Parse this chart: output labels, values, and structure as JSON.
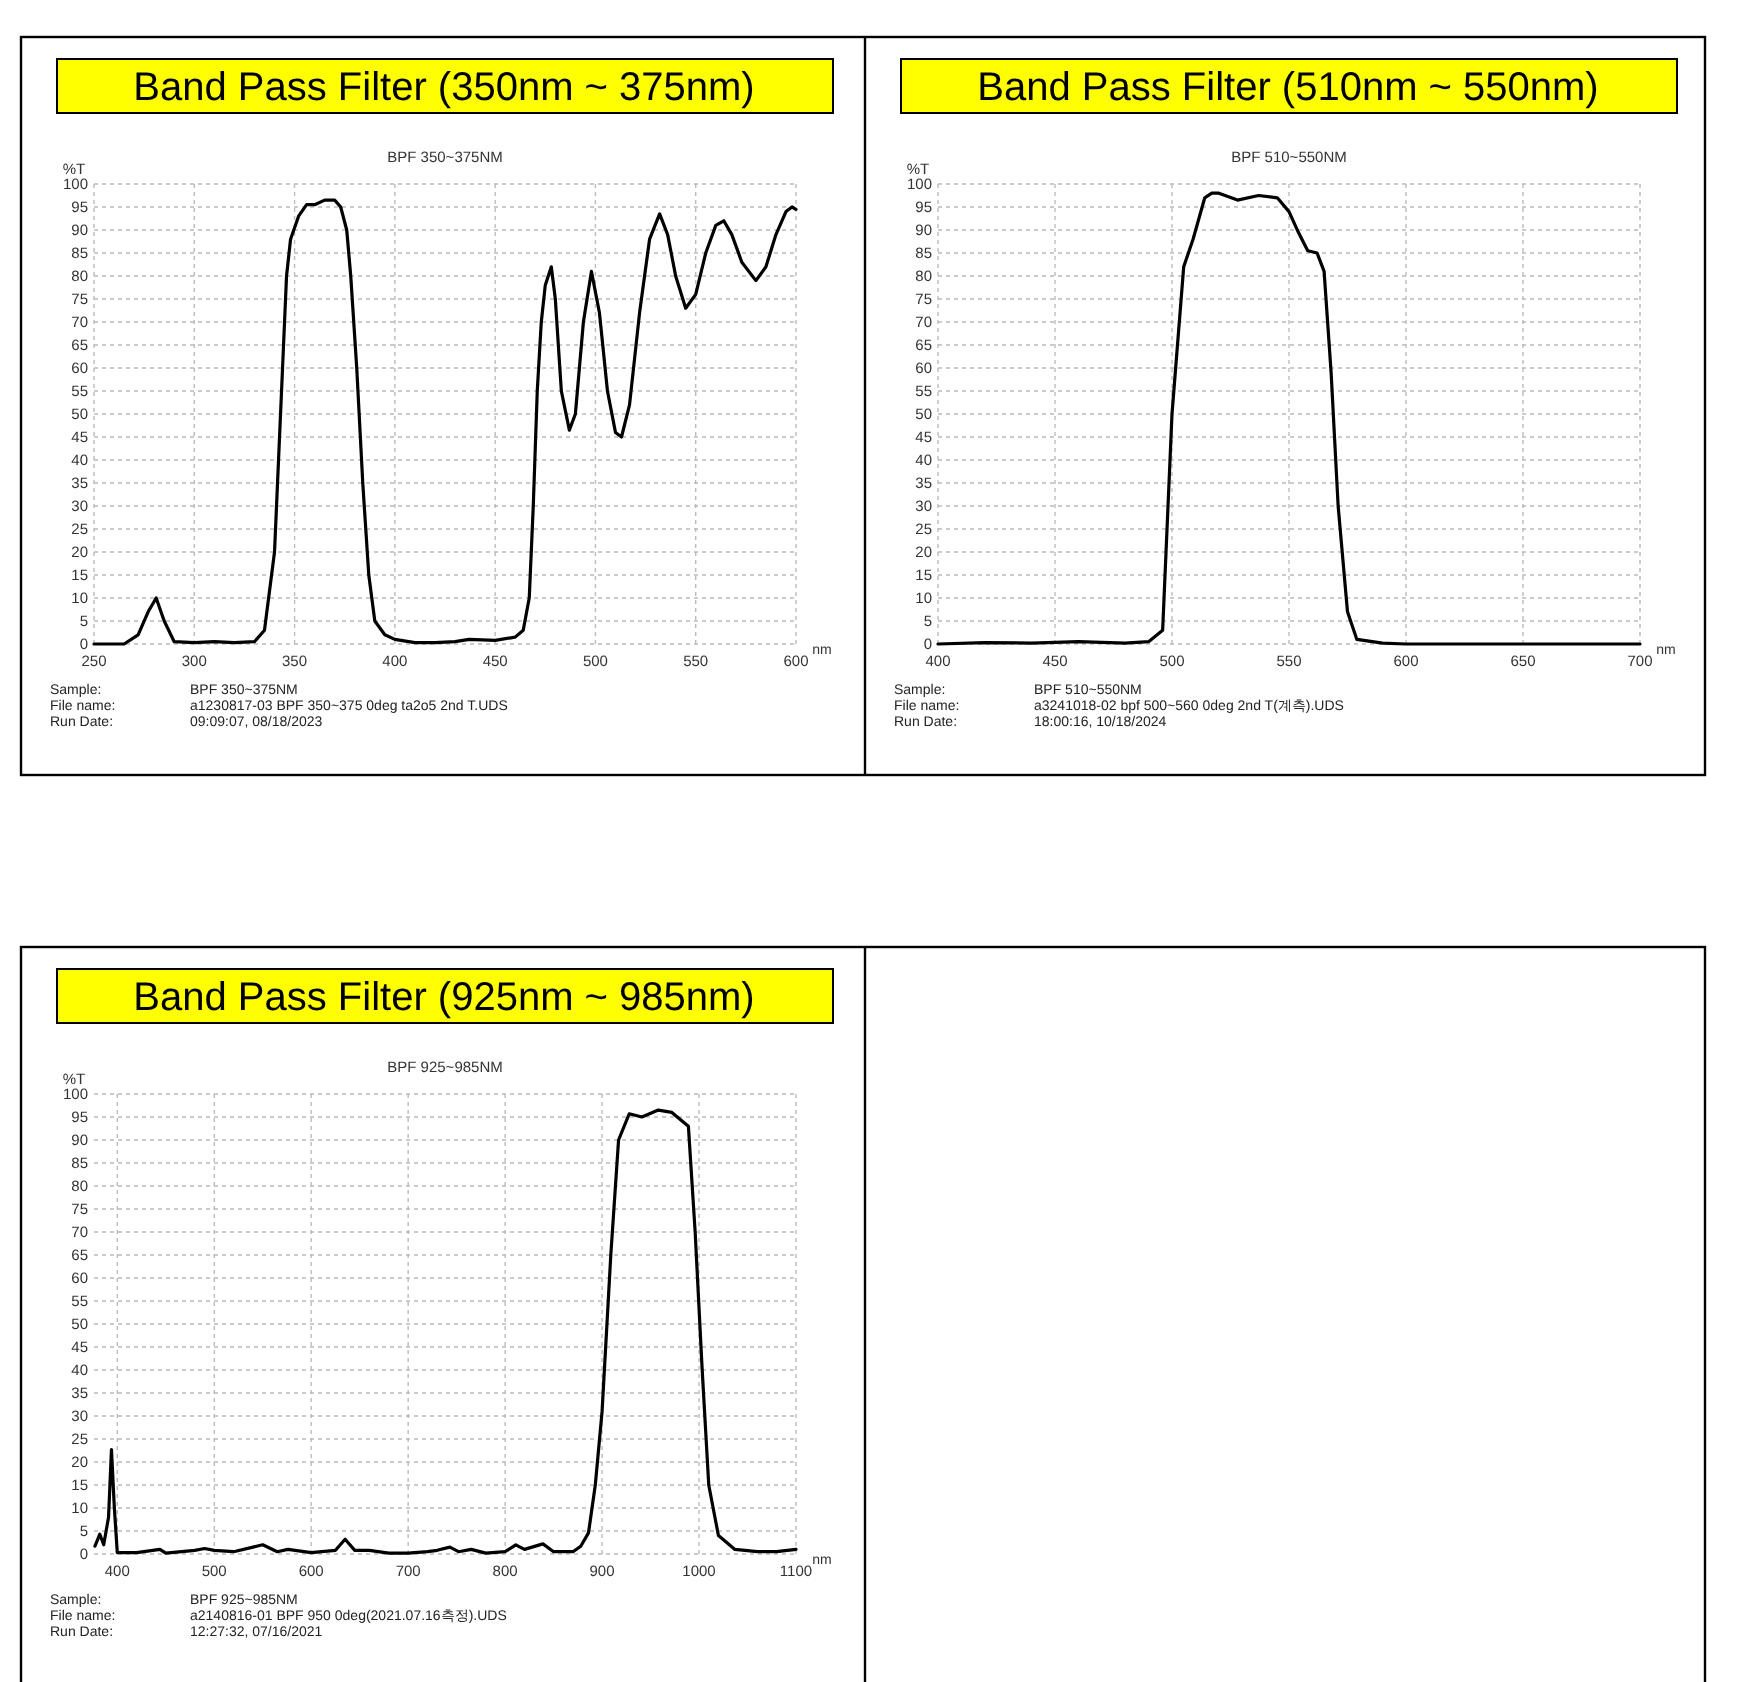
{
  "chart_data": [
    {
      "type": "line",
      "title": "Band Pass Filter (350nm ~ 375nm)",
      "subtitle": "BPF 350~375NM",
      "ylabel": "%T",
      "xlabel": "nm",
      "xlim": [
        250,
        600
      ],
      "ylim": [
        0,
        100
      ],
      "xticks": [
        250,
        300,
        350,
        400,
        450,
        500,
        550,
        600
      ],
      "yticks": [
        0,
        5,
        10,
        15,
        20,
        25,
        30,
        35,
        40,
        45,
        50,
        55,
        60,
        65,
        70,
        75,
        80,
        85,
        90,
        95,
        100
      ],
      "grid": true,
      "marker": "none",
      "line_style": "solid",
      "annotations": [
        "Sample:",
        "BPF 350~375NM",
        "File name:",
        "a1230817-03 BPF 350~375 0deg ta2o5 2nd T.UDS",
        "Run Date:",
        "09:09:07, 08/18/2023"
      ],
      "series": [
        {
          "color": "#000000",
          "x": [
            250,
            265,
            272,
            277,
            281,
            285,
            290,
            300,
            310,
            320,
            330,
            335,
            340,
            343,
            346,
            348,
            352,
            356,
            360,
            365,
            370,
            373,
            376,
            378,
            381,
            384,
            387,
            390,
            395,
            400,
            410,
            420,
            430,
            437,
            450,
            460,
            464,
            467,
            469,
            471,
            473,
            475,
            478,
            480,
            483,
            487,
            490,
            494,
            498,
            502,
            506,
            510,
            513,
            517,
            522,
            527,
            532,
            536,
            540,
            545,
            550,
            555,
            560,
            564,
            568,
            573,
            580,
            585,
            590,
            595,
            598,
            600
          ],
          "values": [
            0,
            0,
            2,
            7,
            10,
            5,
            0.5,
            0.3,
            0.5,
            0.3,
            0.5,
            3,
            20,
            50,
            80,
            88,
            93,
            95.5,
            95.5,
            96.5,
            96.5,
            95,
            90,
            80,
            60,
            35,
            15,
            5,
            2,
            1,
            0.3,
            0.3,
            0.5,
            1,
            0.8,
            1.5,
            3,
            10,
            30,
            55,
            70,
            78,
            82,
            75,
            55,
            46.5,
            50,
            70,
            81,
            72,
            55,
            46,
            45,
            52,
            72,
            88,
            93.5,
            89,
            80,
            73,
            76,
            85,
            91,
            92,
            89,
            83,
            79,
            82,
            89,
            94,
            95,
            94.5
          ]
        }
      ]
    },
    {
      "type": "line",
      "title": "Band Pass Filter (510nm ~ 550nm)",
      "subtitle": "BPF 510~550NM",
      "ylabel": "%T",
      "xlabel": "nm",
      "xlim": [
        400,
        700
      ],
      "ylim": [
        0,
        100
      ],
      "xticks": [
        400,
        450,
        500,
        550,
        600,
        650,
        700
      ],
      "yticks": [
        0,
        5,
        10,
        15,
        20,
        25,
        30,
        35,
        40,
        45,
        50,
        55,
        60,
        65,
        70,
        75,
        80,
        85,
        90,
        95,
        100
      ],
      "grid": true,
      "marker": "none",
      "line_style": "solid",
      "annotations": [
        "Sample:",
        "BPF 510~550NM",
        "File name:",
        "a3241018-02 bpf 500~560 0deg 2nd T(계측).UDS",
        "Run Date:",
        "18:00:16, 10/18/2024"
      ],
      "series": [
        {
          "color": "#000000",
          "x": [
            400,
            420,
            440,
            460,
            480,
            490,
            496,
            500,
            505,
            509,
            514,
            517,
            520,
            528,
            537,
            545,
            550,
            554,
            558,
            562,
            565,
            568,
            571,
            575,
            579,
            590,
            600,
            650,
            700
          ],
          "values": [
            0,
            0.3,
            0.2,
            0.5,
            0.2,
            0.5,
            3,
            50,
            82,
            88,
            97,
            98,
            98,
            96.5,
            97.5,
            97,
            94,
            89.5,
            85.5,
            85,
            81,
            59,
            30,
            7,
            1,
            0.2,
            0,
            0,
            0
          ]
        }
      ]
    },
    {
      "type": "line",
      "title": "Band Pass Filter (925nm ~ 985nm)",
      "subtitle": "BPF 925~985NM",
      "ylabel": "%T",
      "xlabel": "nm",
      "xlim": [
        376,
        1100
      ],
      "ylim": [
        0,
        100
      ],
      "xticks": [
        400,
        500,
        600,
        700,
        800,
        900,
        1000,
        1100
      ],
      "yticks": [
        0,
        5,
        10,
        15,
        20,
        25,
        30,
        35,
        40,
        45,
        50,
        55,
        60,
        65,
        70,
        75,
        80,
        85,
        90,
        95,
        100
      ],
      "grid": true,
      "marker": "none",
      "line_style": "solid",
      "annotations": [
        "Sample:",
        "BPF 925~985NM",
        "File name:",
        "a2140816-01 BPF 950 0deg(2021.07.16측정).UDS",
        "Run Date:",
        "12:27:32, 07/16/2021"
      ],
      "series": [
        {
          "color": "#000000",
          "x": [
            377,
            382,
            386,
            391,
            394,
            397,
            400,
            420,
            444,
            450,
            480,
            490,
            500,
            520,
            540,
            550,
            565,
            576,
            600,
            625,
            635,
            645,
            660,
            680,
            700,
            720,
            730,
            743,
            752,
            765,
            780,
            800,
            811,
            820,
            839,
            850,
            870,
            878,
            886,
            893,
            900,
            909,
            917,
            928,
            941,
            958,
            972,
            989,
            996,
            1003,
            1010,
            1020,
            1037,
            1060,
            1080,
            1100
          ],
          "values": [
            1.7,
            4.3,
            2,
            8,
            22.7,
            10,
            0.3,
            0.3,
            1,
            0.2,
            0.8,
            1.2,
            0.8,
            0.5,
            1.5,
            2,
            0.5,
            1,
            0.3,
            0.8,
            3.2,
            0.8,
            0.8,
            0.2,
            0.2,
            0.5,
            0.8,
            1.5,
            0.5,
            1,
            0.2,
            0.5,
            2,
            1,
            2.2,
            0.5,
            0.5,
            1.7,
            4.6,
            15,
            31,
            65,
            90,
            95.7,
            95,
            96.5,
            96,
            93,
            70,
            41,
            15,
            4,
            1,
            0.5,
            0.5,
            1
          ]
        }
      ]
    }
  ]
}
